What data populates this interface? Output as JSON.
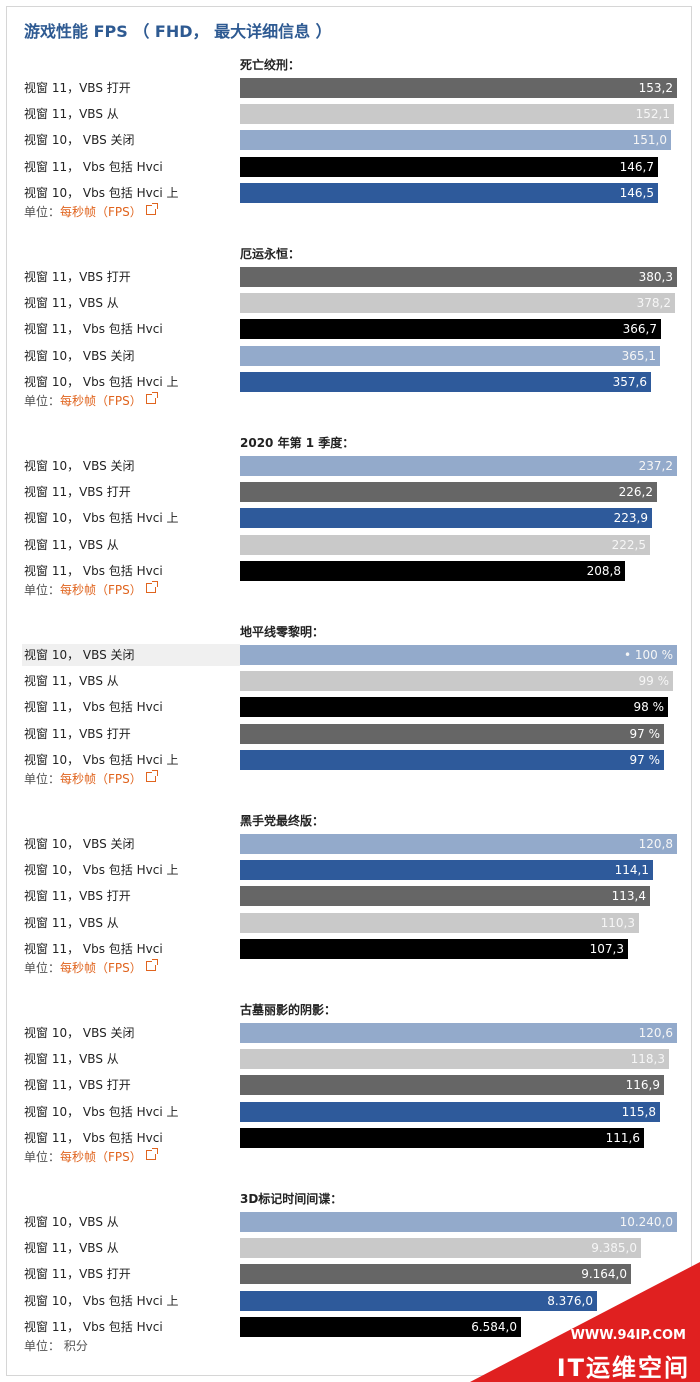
{
  "title": "游戏性能 FPS （ FHD， 最大详细信息 ）",
  "colors": {
    "win11_vbs_on": "#666666",
    "win11_vbs_off": "#c9c9c9",
    "win10_vbs_off": "#93aacb",
    "win11_vbs_hvci": "#000000",
    "win10_vbs_hvci": "#2e5a9b",
    "win10_vbs_from": "#93aacb"
  },
  "watermark": {
    "site": "WWW.94IP.COM",
    "brand": "IT运维空间"
  },
  "chart_data": [
    {
      "type": "bar",
      "title": "死亡绞刑：",
      "unit_prefix": "单位：",
      "unit_link": "每秒帧（FPS）",
      "xlim": [
        0,
        153.2
      ],
      "categories": [
        "视窗 11，VBS 打开",
        "视窗 11，VBS 从",
        "视窗 10， VBS 关闭",
        "视窗 11， Vbs 包括 Hvci",
        "视窗 10， Vbs 包括 Hvci 上"
      ],
      "values": [
        153.2,
        152.1,
        151.0,
        146.7,
        146.5
      ],
      "value_labels": [
        "153,2",
        "152,1",
        "151,0",
        "146,7",
        "146,5"
      ],
      "colors": [
        "#666666",
        "#c9c9c9",
        "#93aacb",
        "#000000",
        "#2e5a9b"
      ]
    },
    {
      "type": "bar",
      "title": "厄运永恒：",
      "unit_prefix": "单位：",
      "unit_link": "每秒帧（FPS）",
      "xlim": [
        0,
        380.3
      ],
      "categories": [
        "视窗 11，VBS 打开",
        "视窗 11，VBS 从",
        "视窗 11， Vbs 包括 Hvci",
        "视窗 10， VBS 关闭",
        "视窗 10， Vbs 包括 Hvci 上"
      ],
      "values": [
        380.3,
        378.2,
        366.7,
        365.1,
        357.6
      ],
      "value_labels": [
        "380,3",
        "378,2",
        "366,7",
        "365,1",
        "357,6"
      ],
      "colors": [
        "#666666",
        "#c9c9c9",
        "#000000",
        "#93aacb",
        "#2e5a9b"
      ]
    },
    {
      "type": "bar",
      "title": "2020 年第 1 季度：",
      "unit_prefix": "单位：",
      "unit_link": "每秒帧（FPS）",
      "xlim": [
        0,
        237.2
      ],
      "categories": [
        "视窗 10， VBS 关闭",
        "视窗 11，VBS 打开",
        "视窗 10， Vbs 包括 Hvci 上",
        "视窗 11，VBS 从",
        "视窗 11， Vbs 包括 Hvci"
      ],
      "values": [
        237.2,
        226.2,
        223.9,
        222.5,
        208.8
      ],
      "value_labels": [
        "237,2",
        "226,2",
        "223,9",
        "222,5",
        "208,8"
      ],
      "colors": [
        "#93aacb",
        "#666666",
        "#2e5a9b",
        "#c9c9c9",
        "#000000"
      ]
    },
    {
      "type": "bar",
      "title": "地平线零黎明：",
      "unit_prefix": "单位：",
      "unit_link": "每秒帧（FPS）",
      "xlim": [
        0,
        100
      ],
      "highlight_row": 0,
      "categories": [
        "视窗 10， VBS 关闭",
        "视窗 11，VBS 从",
        "视窗 11， Vbs 包括 Hvci",
        "视窗 11，VBS 打开",
        "视窗 10， Vbs 包括 Hvci 上"
      ],
      "values": [
        100,
        99,
        98,
        97,
        97
      ],
      "value_labels": [
        "• 100 %",
        "99 %",
        "98 %",
        "97 %",
        "97 %"
      ],
      "colors": [
        "#93aacb",
        "#c9c9c9",
        "#000000",
        "#666666",
        "#2e5a9b"
      ]
    },
    {
      "type": "bar",
      "title": "黑手党最终版：",
      "unit_prefix": "单位：",
      "unit_link": "每秒帧（FPS）",
      "xlim": [
        0,
        120.8
      ],
      "categories": [
        "视窗 10， VBS 关闭",
        "视窗 10， Vbs 包括 Hvci 上",
        "视窗 11，VBS 打开",
        "视窗 11，VBS 从",
        "视窗 11， Vbs 包括 Hvci"
      ],
      "values": [
        120.8,
        114.1,
        113.4,
        110.3,
        107.3
      ],
      "value_labels": [
        "120,8",
        "114,1",
        "113,4",
        "110,3",
        "107,3"
      ],
      "colors": [
        "#93aacb",
        "#2e5a9b",
        "#666666",
        "#c9c9c9",
        "#000000"
      ]
    },
    {
      "type": "bar",
      "title": "古墓丽影的阴影：",
      "unit_prefix": "单位：",
      "unit_link": "每秒帧（FPS）",
      "xlim": [
        0,
        120.6
      ],
      "categories": [
        "视窗 10， VBS 关闭",
        "视窗 11，VBS 从",
        "视窗 11，VBS 打开",
        "视窗 10， Vbs 包括 Hvci 上",
        "视窗 11， Vbs 包括 Hvci"
      ],
      "values": [
        120.6,
        118.3,
        116.9,
        115.8,
        111.6
      ],
      "value_labels": [
        "120,6",
        "118,3",
        "116,9",
        "115,8",
        "111,6"
      ],
      "colors": [
        "#93aacb",
        "#c9c9c9",
        "#666666",
        "#2e5a9b",
        "#000000"
      ]
    },
    {
      "type": "bar",
      "title": "3D标记时间间谍：",
      "unit_prefix": "单位： 积分",
      "unit_link": "",
      "xlim": [
        0,
        10240
      ],
      "categories": [
        "视窗 10，VBS 从",
        "视窗 11，VBS 从",
        "视窗 11，VBS 打开",
        "视窗 10， Vbs 包括 Hvci 上",
        "视窗 11， Vbs 包括 Hvci"
      ],
      "values": [
        10240,
        9385,
        9164,
        8376,
        6584
      ],
      "value_labels": [
        "10.240,0",
        "9.385,0",
        "9.164,0",
        "8.376,0",
        "6.584,0"
      ],
      "colors": [
        "#93aacb",
        "#c9c9c9",
        "#666666",
        "#2e5a9b",
        "#000000"
      ]
    }
  ]
}
